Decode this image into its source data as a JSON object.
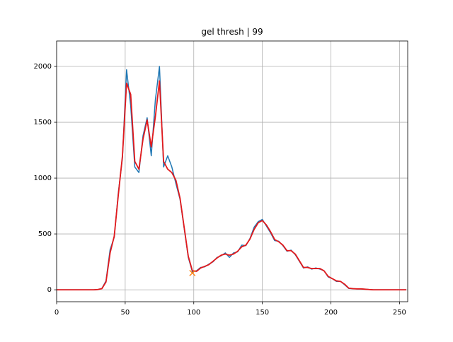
{
  "chart_data": {
    "type": "line",
    "title": "gel thresh | 99",
    "x": [
      0,
      3,
      6,
      9,
      12,
      15,
      18,
      21,
      24,
      27,
      30,
      33,
      36,
      39,
      42,
      45,
      48,
      51,
      54,
      57,
      60,
      63,
      66,
      69,
      72,
      75,
      78,
      81,
      84,
      87,
      90,
      93,
      96,
      99,
      102,
      105,
      108,
      111,
      114,
      117,
      120,
      123,
      126,
      129,
      132,
      135,
      138,
      141,
      144,
      147,
      150,
      153,
      156,
      159,
      162,
      165,
      168,
      171,
      174,
      177,
      180,
      183,
      186,
      189,
      192,
      195,
      198,
      201,
      204,
      207,
      210,
      213,
      216,
      219,
      222,
      225,
      228,
      231,
      234,
      237,
      240,
      243,
      246,
      249,
      252,
      255
    ],
    "series": [
      {
        "color": "#1f77b4",
        "values": [
          0,
          0,
          0,
          0,
          0,
          0,
          0,
          0,
          0,
          0,
          2,
          12,
          80,
          360,
          470,
          870,
          1180,
          1970,
          1650,
          1100,
          1050,
          1380,
          1540,
          1200,
          1700,
          2000,
          1100,
          1200,
          1100,
          950,
          810,
          550,
          290,
          160,
          170,
          200,
          205,
          230,
          250,
          290,
          305,
          330,
          290,
          330,
          340,
          400,
          395,
          460,
          560,
          610,
          630,
          570,
          510,
          440,
          435,
          395,
          345,
          355,
          315,
          255,
          195,
          205,
          185,
          195,
          185,
          170,
          115,
          100,
          75,
          75,
          45,
          12,
          10,
          8,
          7,
          5,
          2,
          0,
          0,
          0,
          0,
          0,
          0,
          0,
          0,
          0
        ]
      },
      {
        "color": "#e31a1c",
        "values": [
          0,
          0,
          0,
          0,
          0,
          0,
          0,
          0,
          0,
          0,
          2,
          10,
          70,
          330,
          480,
          850,
          1200,
          1850,
          1750,
          1150,
          1080,
          1350,
          1520,
          1280,
          1550,
          1870,
          1150,
          1080,
          1050,
          980,
          820,
          560,
          300,
          170,
          165,
          195,
          210,
          225,
          255,
          285,
          310,
          320,
          310,
          320,
          345,
          385,
          400,
          455,
          540,
          600,
          620,
          580,
          520,
          450,
          430,
          400,
          350,
          350,
          320,
          260,
          200,
          200,
          190,
          190,
          190,
          170,
          120,
          100,
          80,
          75,
          50,
          15,
          10,
          8,
          8,
          5,
          2,
          0,
          0,
          0,
          0,
          0,
          0,
          0,
          0,
          0
        ]
      }
    ],
    "marker": {
      "x": 99,
      "y": 150,
      "color": "#ff7f0e"
    },
    "xlim": [
      0,
      256
    ],
    "ylim": [
      -107,
      2228
    ],
    "xticks": [
      0,
      50,
      100,
      150,
      200,
      250
    ],
    "yticks": [
      0,
      500,
      1000,
      1500,
      2000
    ],
    "grid": true
  }
}
